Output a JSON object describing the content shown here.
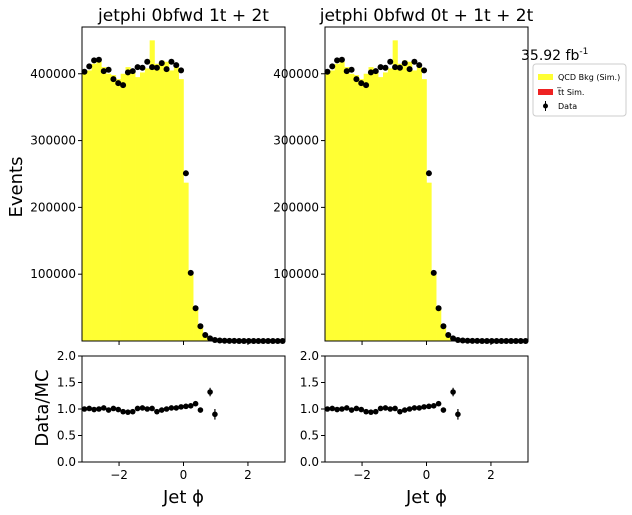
{
  "lumi_label": "35.92 fb",
  "lumi_sup": "-1",
  "y_label_top": "Events",
  "y_label_bottom": "Data/MC",
  "legend": {
    "qcd": "QCD Bkg (Sim.)",
    "ttbar": "t̅t Sim.",
    "data": "Data"
  },
  "colors": {
    "qcd": "#ffff33",
    "ttbar": "#ee2222",
    "data": "#000000",
    "frame": "#000000"
  },
  "chart_data": [
    {
      "type": "bar",
      "title": "jetphi  0bfwd 1t + 2t",
      "xlabel": "Jet ϕ",
      "ylabel": "Events",
      "xlim": [
        -3.15,
        3.15
      ],
      "ylim": [
        0,
        470000
      ],
      "bin_width": 0.15,
      "x_ticks": [
        -2,
        0,
        2
      ],
      "x_tick_labels": [
        "−2",
        "0",
        "2"
      ],
      "y_ticks": [
        100000,
        200000,
        300000,
        400000
      ],
      "y_tick_labels": [
        "100000",
        "200000",
        "300000",
        "400000"
      ],
      "qcd_values": [
        402000,
        405000,
        415000,
        418000,
        410000,
        400000,
        398000,
        392000,
        400000,
        410000,
        405000,
        395000,
        402000,
        408000,
        450000,
        415000,
        420000,
        418000,
        405000,
        410000,
        392000,
        237000,
        103000,
        48000,
        20000,
        8000,
        3000,
        1000,
        500,
        200,
        100,
        0,
        0,
        0,
        0,
        0,
        0,
        0,
        0,
        0,
        0,
        0
      ],
      "data_values": [
        403000,
        411000,
        420000,
        421000,
        404000,
        406000,
        392000,
        386000,
        383000,
        402000,
        404000,
        410000,
        409000,
        418000,
        410000,
        409000,
        416000,
        407000,
        418000,
        413000,
        405000,
        251000,
        102000,
        49000,
        22000,
        9000,
        4000,
        1500,
        700,
        300,
        150,
        100,
        80,
        60,
        50,
        40,
        30,
        20,
        20,
        10,
        10,
        10
      ]
    },
    {
      "type": "bar",
      "title": "jetphi  0bfwd 0t + 1t + 2t",
      "xlabel": "Jet ϕ",
      "ylabel": "",
      "xlim": [
        -3.15,
        3.15
      ],
      "ylim": [
        0,
        470000
      ],
      "bin_width": 0.15,
      "x_ticks": [
        -2,
        0,
        2
      ],
      "x_tick_labels": [
        "−2",
        "0",
        "2"
      ],
      "y_ticks": [
        100000,
        200000,
        300000,
        400000
      ],
      "y_tick_labels": [
        "100000",
        "200000",
        "300000",
        "400000"
      ],
      "qcd_values": [
        402000,
        405000,
        415000,
        418000,
        410000,
        400000,
        398000,
        392000,
        400000,
        410000,
        405000,
        395000,
        402000,
        408000,
        450000,
        415000,
        420000,
        418000,
        405000,
        410000,
        392000,
        237000,
        103000,
        48000,
        20000,
        8000,
        3000,
        1000,
        500,
        200,
        100,
        0,
        0,
        0,
        0,
        0,
        0,
        0,
        0,
        0,
        0,
        0
      ],
      "data_values": [
        403000,
        411000,
        420000,
        421000,
        404000,
        406000,
        392000,
        386000,
        383000,
        402000,
        404000,
        410000,
        409000,
        418000,
        410000,
        409000,
        416000,
        407000,
        418000,
        413000,
        405000,
        251000,
        102000,
        49000,
        22000,
        9000,
        4000,
        1500,
        700,
        300,
        150,
        100,
        80,
        60,
        50,
        40,
        30,
        20,
        20,
        10,
        10,
        10
      ]
    },
    {
      "type": "scatter",
      "xlabel": "Jet ϕ",
      "ylabel": "Data/MC",
      "xlim": [
        -3.15,
        3.15
      ],
      "ylim": [
        0,
        2
      ],
      "x_ticks": [
        -2,
        0,
        2
      ],
      "x_tick_labels": [
        "−2",
        "0",
        "2"
      ],
      "y_ticks": [
        0,
        0.5,
        1,
        1.5,
        2
      ],
      "y_tick_labels": [
        "0.0",
        "0.5",
        "1.0",
        "1.5",
        "2.0"
      ],
      "ratio_x": [
        -3.075,
        -2.925,
        -2.775,
        -2.625,
        -2.475,
        -2.325,
        -2.175,
        -2.025,
        -1.875,
        -1.725,
        -1.575,
        -1.425,
        -1.275,
        -1.125,
        -0.975,
        -0.825,
        -0.675,
        -0.525,
        -0.375,
        -0.225,
        -0.075,
        0.075,
        0.225,
        0.375,
        0.525,
        0.825,
        0.975
      ],
      "ratio_y": [
        1.0,
        1.01,
        0.99,
        1.0,
        1.02,
        0.98,
        1.01,
        0.99,
        0.95,
        0.94,
        0.95,
        1.01,
        1.02,
        1.0,
        1.01,
        0.95,
        0.98,
        1.0,
        1.02,
        1.02,
        1.04,
        1.05,
        1.06,
        1.1,
        0.98,
        1.32,
        0.9
      ],
      "ratio_err": [
        0.02,
        0.02,
        0.02,
        0.02,
        0.02,
        0.02,
        0.02,
        0.02,
        0.02,
        0.02,
        0.02,
        0.02,
        0.02,
        0.02,
        0.02,
        0.02,
        0.02,
        0.02,
        0.02,
        0.02,
        0.02,
        0.02,
        0.03,
        0.03,
        0.04,
        0.08,
        0.1
      ]
    },
    {
      "type": "scatter",
      "xlabel": "Jet ϕ",
      "ylabel": "",
      "xlim": [
        -3.15,
        3.15
      ],
      "ylim": [
        0,
        2
      ],
      "x_ticks": [
        -2,
        0,
        2
      ],
      "x_tick_labels": [
        "−2",
        "0",
        "2"
      ],
      "y_ticks": [
        0,
        0.5,
        1,
        1.5,
        2
      ],
      "y_tick_labels": [
        "0.0",
        "0.5",
        "1.0",
        "1.5",
        "2.0"
      ],
      "ratio_x": [
        -3.075,
        -2.925,
        -2.775,
        -2.625,
        -2.475,
        -2.325,
        -2.175,
        -2.025,
        -1.875,
        -1.725,
        -1.575,
        -1.425,
        -1.275,
        -1.125,
        -0.975,
        -0.825,
        -0.675,
        -0.525,
        -0.375,
        -0.225,
        -0.075,
        0.075,
        0.225,
        0.375,
        0.525,
        0.825,
        0.975
      ],
      "ratio_y": [
        1.0,
        1.01,
        0.99,
        1.0,
        1.02,
        0.98,
        1.01,
        0.99,
        0.95,
        0.94,
        0.95,
        1.01,
        1.02,
        1.0,
        1.01,
        0.95,
        0.98,
        1.0,
        1.02,
        1.02,
        1.04,
        1.05,
        1.06,
        1.1,
        0.98,
        1.32,
        0.9
      ],
      "ratio_err": [
        0.02,
        0.02,
        0.02,
        0.02,
        0.02,
        0.02,
        0.02,
        0.02,
        0.02,
        0.02,
        0.02,
        0.02,
        0.02,
        0.02,
        0.02,
        0.02,
        0.02,
        0.02,
        0.02,
        0.02,
        0.02,
        0.02,
        0.03,
        0.03,
        0.04,
        0.08,
        0.1
      ]
    }
  ]
}
